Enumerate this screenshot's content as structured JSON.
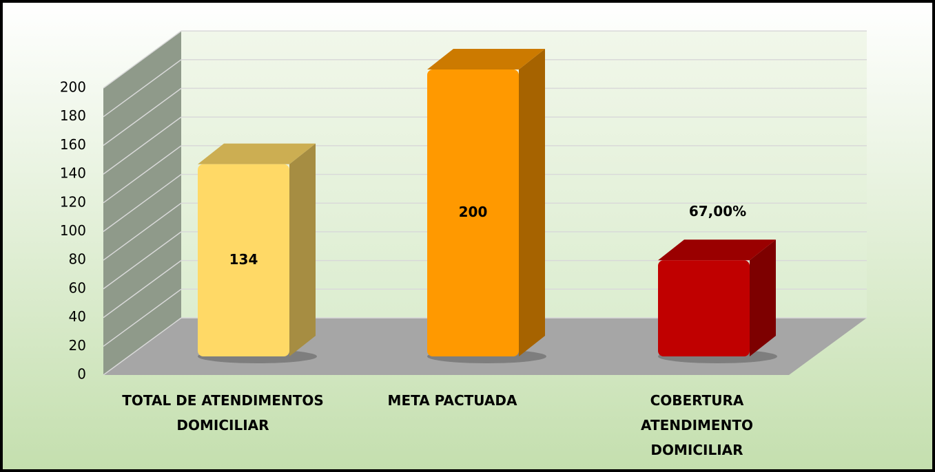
{
  "chart_data": {
    "type": "bar3d",
    "categories": [
      "TOTAL DE ATENDIMENTOS DOMICILIAR",
      "META PACTUADA",
      "COBERTURA ATENDIMENTO DOMICILIAR"
    ],
    "values": [
      134,
      200,
      67
    ],
    "value_labels": [
      "134",
      "200",
      "67,00%"
    ],
    "colors": [
      "#ffd966",
      "#ff9900",
      "#c00000"
    ],
    "ylim": [
      0,
      200
    ],
    "yticks": [
      0,
      20,
      40,
      60,
      80,
      100,
      120,
      140,
      160,
      180,
      200
    ],
    "grid": true
  }
}
